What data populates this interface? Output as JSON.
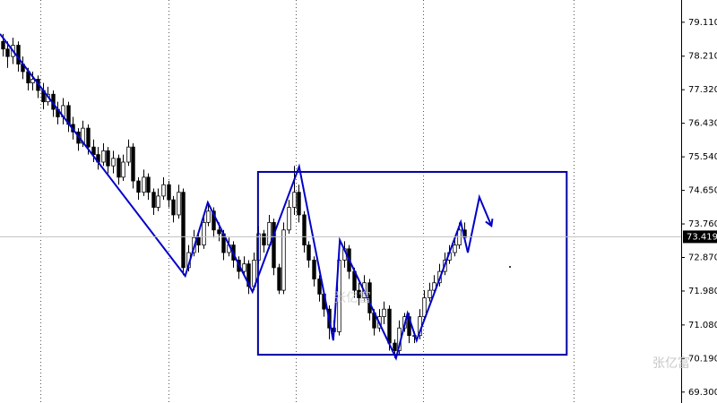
{
  "chart_data": {
    "type": "candlestick",
    "open": [
      78.6,
      78.4,
      78.2,
      78.5,
      78.0,
      77.8,
      77.5,
      77.6,
      77.3,
      77.0,
      77.2,
      76.8,
      76.6,
      76.9,
      76.4,
      76.2,
      75.9,
      76.3,
      75.8,
      75.6,
      75.4,
      75.7,
      75.3,
      75.5,
      75.0,
      75.4,
      75.8,
      74.9,
      74.6,
      75.0,
      74.6,
      74.2,
      74.5,
      74.8,
      74.4,
      74.0,
      74.6,
      72.6,
      73.0,
      73.4,
      73.2,
      73.8,
      74.1,
      73.6,
      73.5,
      73.0,
      73.2,
      72.8,
      72.5,
      72.7,
      72.1,
      72.8,
      73.5,
      73.2,
      73.8,
      72.6,
      72.0,
      73.6,
      74.2,
      74.6,
      74.0,
      73.2,
      72.8,
      72.3,
      71.9,
      71.5,
      71.0,
      70.9,
      72.8,
      73.1,
      72.5,
      72.0,
      71.8,
      72.2,
      71.4,
      71.0,
      71.3,
      71.5,
      70.6,
      70.4,
      71.0,
      71.3,
      70.8,
      70.8,
      71.3,
      71.8,
      72.0,
      72.2,
      72.5,
      72.8,
      73.0,
      73.2,
      73.6
    ],
    "high": [
      78.8,
      78.6,
      78.7,
      78.6,
      78.2,
      77.9,
      77.8,
      77.7,
      77.5,
      77.4,
      77.3,
      77.0,
      77.1,
      77.0,
      76.6,
      76.3,
      76.5,
      76.4,
      76.0,
      75.8,
      75.9,
      75.8,
      75.7,
      75.6,
      75.6,
      76.0,
      75.9,
      75.0,
      75.2,
      75.1,
      74.7,
      74.7,
      75.0,
      74.9,
      74.5,
      74.8,
      74.7,
      73.2,
      73.6,
      73.5,
      74.0,
      74.3,
      74.2,
      73.8,
      73.6,
      73.4,
      73.3,
      72.9,
      72.9,
      72.8,
      73.0,
      73.7,
      73.6,
      74.0,
      73.9,
      72.7,
      73.8,
      74.4,
      75.3,
      74.8,
      74.1,
      73.3,
      72.9,
      72.4,
      72.0,
      71.6,
      71.2,
      73.3,
      73.3,
      73.2,
      72.6,
      72.2,
      72.4,
      72.3,
      71.5,
      71.5,
      71.7,
      71.6,
      70.7,
      71.2,
      71.4,
      71.4,
      70.9,
      71.5,
      72.0,
      72.2,
      72.4,
      72.7,
      73.0,
      73.2,
      73.4,
      73.8,
      73.8
    ],
    "low": [
      78.2,
      77.9,
      78.0,
      77.8,
      77.6,
      77.3,
      77.3,
      77.1,
      76.8,
      76.9,
      76.6,
      76.4,
      76.4,
      76.2,
      76.0,
      75.7,
      75.8,
      75.6,
      75.4,
      75.2,
      75.3,
      75.1,
      75.1,
      74.8,
      74.9,
      75.3,
      74.7,
      74.4,
      74.5,
      74.4,
      74.0,
      74.1,
      74.4,
      74.2,
      73.8,
      73.9,
      72.4,
      72.5,
      72.9,
      73.0,
      73.1,
      73.7,
      73.4,
      73.3,
      72.8,
      72.9,
      72.6,
      72.3,
      72.4,
      71.9,
      72.0,
      72.7,
      73.0,
      73.1,
      72.4,
      71.9,
      71.9,
      73.5,
      74.0,
      73.8,
      73.0,
      72.6,
      72.1,
      71.7,
      71.3,
      70.7,
      70.7,
      70.8,
      72.6,
      72.3,
      71.8,
      71.6,
      71.7,
      71.2,
      70.8,
      70.9,
      71.1,
      70.4,
      70.2,
      70.3,
      70.9,
      70.6,
      70.6,
      70.7,
      71.2,
      71.7,
      71.9,
      72.1,
      72.4,
      72.7,
      72.9,
      73.1,
      73.3
    ],
    "close": [
      78.4,
      78.2,
      78.5,
      78.0,
      77.8,
      77.5,
      77.6,
      77.3,
      77.0,
      77.2,
      76.8,
      76.6,
      76.9,
      76.4,
      76.2,
      75.9,
      76.3,
      75.8,
      75.6,
      75.4,
      75.7,
      75.3,
      75.5,
      75.0,
      75.4,
      75.8,
      74.9,
      74.6,
      75.0,
      74.6,
      74.2,
      74.5,
      74.8,
      74.4,
      74.0,
      74.6,
      72.6,
      73.0,
      73.4,
      73.2,
      73.8,
      74.1,
      73.6,
      73.5,
      73.0,
      73.2,
      72.8,
      72.5,
      72.7,
      72.1,
      72.8,
      73.5,
      73.2,
      73.8,
      72.6,
      72.0,
      73.6,
      74.2,
      74.6,
      74.0,
      73.2,
      72.8,
      72.3,
      71.9,
      71.5,
      71.0,
      70.9,
      72.8,
      73.1,
      72.5,
      72.0,
      71.8,
      72.2,
      71.4,
      71.0,
      71.3,
      71.5,
      70.6,
      70.4,
      71.0,
      71.3,
      70.8,
      70.8,
      71.3,
      71.8,
      72.0,
      72.2,
      72.5,
      72.8,
      73.0,
      73.2,
      73.6,
      73.4
    ],
    "color_up": "#ffffff",
    "color_down": "#000000",
    "xlim": [
      -0.5,
      135.2
    ],
    "ylim": [
      69.01,
      79.7
    ],
    "yticks": [
      {
        "value": 79.11,
        "label": "79.110"
      },
      {
        "value": 78.21,
        "label": "78.210"
      },
      {
        "value": 77.32,
        "label": "77.320"
      },
      {
        "value": 76.43,
        "label": "76.430"
      },
      {
        "value": 75.54,
        "label": "75.540"
      },
      {
        "value": 74.65,
        "label": "74.650"
      },
      {
        "value": 73.76,
        "label": "73.760"
      },
      {
        "value": 72.87,
        "label": "72.870"
      },
      {
        "value": 71.98,
        "label": "71.980"
      },
      {
        "value": 71.08,
        "label": "71.080"
      },
      {
        "value": 70.19,
        "label": "70.190"
      },
      {
        "value": 69.3,
        "label": "69.300"
      }
    ],
    "xgrid": [
      7.5,
      33,
      58.4,
      83.8,
      113.8
    ],
    "last_price": 73.419,
    "zigzag": {
      "color": "#0000c8",
      "x": [
        -0.5,
        36.4,
        40.9,
        49.8,
        59.1,
        65.9,
        67.2,
        78.4,
        80.7,
        82.5,
        91.3,
        92.7,
        95.0,
        97.4
      ],
      "values": [
        78.8,
        72.38,
        74.33,
        71.96,
        75.28,
        70.67,
        73.33,
        70.2,
        71.39,
        70.67,
        73.81,
        73.0,
        74.47,
        73.71
      ]
    },
    "box": {
      "color": "#0000a0",
      "x": [
        50.9,
        112.4
      ],
      "values": [
        75.14,
        70.29
      ]
    },
    "watermarks": [
      "张亿富",
      "张亿富"
    ]
  }
}
